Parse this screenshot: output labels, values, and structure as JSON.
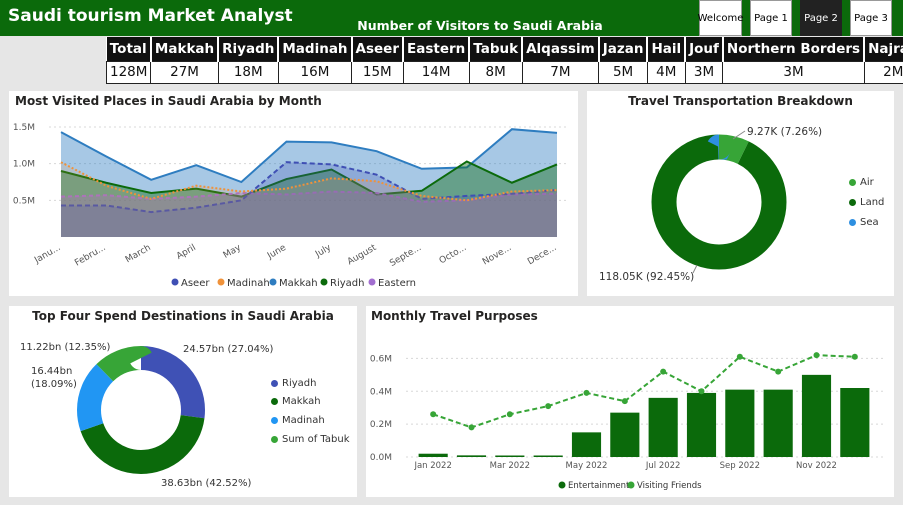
{
  "header": {
    "title": "Saudi tourism Market Analyst",
    "kpi_title": "Number of Visitors to Saudi Arabia",
    "pages": [
      {
        "label": "Welcome",
        "active": false
      },
      {
        "label": "Page 1",
        "active": false
      },
      {
        "label": "Page 2",
        "active": true
      },
      {
        "label": "Page 3",
        "active": false
      }
    ]
  },
  "kpi": {
    "headers": [
      "Total",
      "Makkah",
      "Riyadh",
      "Madinah",
      "Aseer",
      "Eastern",
      "Tabuk",
      "Alqassim",
      "Jazan",
      "Hail",
      "Jouf",
      "Northern Borders",
      "Najran"
    ],
    "values": [
      "128M",
      "27M",
      "18M",
      "16M",
      "15M",
      "14M",
      "8M",
      "7M",
      "5M",
      "4M",
      "3M",
      "3M",
      "2M"
    ]
  },
  "colors": {
    "header_green": "#0b6a0b",
    "aseer": "#3f4fb4",
    "madinah": "#f0923a",
    "makkah": "#2e7dc0",
    "riyadh": "#0b6a0b",
    "eastern": "#a26ed0",
    "air": "#37a537",
    "land": "#0b6a0b",
    "sea": "#2e8fe0",
    "riyadh_donut": "#3f51b5",
    "makkah_donut": "#0b6a0b",
    "madinah_donut": "#2196f3",
    "tabuk_donut": "#37a537",
    "entertainment": "#0b6a0b",
    "visiting_friends": "#37a537"
  },
  "chart_data": [
    {
      "id": "monthly_places",
      "type": "area",
      "title": "Most Visited Places in Saudi Arabia by Month",
      "categories": [
        "Janu...",
        "Febru...",
        "March",
        "April",
        "May",
        "June",
        "July",
        "August",
        "Septe...",
        "Octo...",
        "Nove...",
        "Dece..."
      ],
      "y_ticks": [
        "0.5M",
        "1.0M",
        "1.5M"
      ],
      "ylim": [
        0,
        1.5
      ],
      "series": [
        {
          "name": "Aseer",
          "values": [
            0.43,
            0.43,
            0.34,
            0.4,
            0.5,
            1.02,
            0.99,
            0.85,
            0.52,
            0.56,
            0.59,
            0.64
          ]
        },
        {
          "name": "Madinah",
          "values": [
            1.02,
            0.7,
            0.52,
            0.7,
            0.62,
            0.66,
            0.8,
            0.76,
            0.56,
            0.5,
            0.62,
            0.64
          ]
        },
        {
          "name": "Makkah",
          "values": [
            1.43,
            1.1,
            0.78,
            0.98,
            0.75,
            1.3,
            1.29,
            1.17,
            0.93,
            0.95,
            1.47,
            1.42
          ]
        },
        {
          "name": "Riyadh",
          "values": [
            0.9,
            0.74,
            0.6,
            0.66,
            0.55,
            0.79,
            0.92,
            0.58,
            0.63,
            1.03,
            0.74,
            0.99
          ]
        },
        {
          "name": "Eastern",
          "values": [
            0.55,
            0.57,
            0.52,
            0.55,
            0.6,
            0.58,
            0.62,
            0.6,
            0.48,
            0.5,
            0.58,
            0.59
          ]
        }
      ],
      "legend": [
        "Aseer",
        "Madinah",
        "Makkah",
        "Riyadh",
        "Eastern"
      ]
    },
    {
      "id": "transport",
      "type": "pie",
      "title": "Travel Transportation Breakdown",
      "slices": [
        {
          "name": "Air",
          "value": 9.27,
          "label": "9.27K (7.26%)"
        },
        {
          "name": "Land",
          "value": 118.05,
          "label": "118.05K (92.45%)"
        },
        {
          "name": "Sea",
          "value": 0.37,
          "label": ""
        }
      ],
      "legend": [
        "Air",
        "Land",
        "Sea"
      ]
    },
    {
      "id": "spend",
      "type": "pie",
      "title": "Top Four Spend Destinations in Saudi Arabia",
      "slices": [
        {
          "name": "Riyadh",
          "value": 24.57,
          "label": "24.57bn (27.04%)"
        },
        {
          "name": "Makkah",
          "value": 38.63,
          "label": "38.63bn (42.52%)"
        },
        {
          "name": "Madinah",
          "value": 16.44,
          "label_line1": "16.44bn",
          "label_line2": "(18.09%)"
        },
        {
          "name": "Sum of Tabuk",
          "value": 11.22,
          "label": "11.22bn (12.35%)"
        }
      ],
      "legend": [
        "Riyadh",
        "Makkah",
        "Madinah",
        "Sum of Tabuk"
      ]
    },
    {
      "id": "purposes",
      "type": "bar",
      "title": "Monthly Travel Purposes",
      "x_tick_labels": [
        "Jan 2022",
        "Mar 2022",
        "May 2022",
        "Jul 2022",
        "Sep 2022",
        "Nov 2022"
      ],
      "y_ticks": [
        "0.0M",
        "0.2M",
        "0.4M",
        "0.6M"
      ],
      "ylim": [
        0,
        0.7
      ],
      "series": [
        {
          "name": "Entertainment",
          "type": "bar",
          "values": [
            0.02,
            0.01,
            0.005,
            0.005,
            0.15,
            0.27,
            0.36,
            0.39,
            0.41,
            0.41,
            0.5,
            0.42
          ]
        },
        {
          "name": "Visiting Friends",
          "type": "line",
          "values": [
            0.26,
            0.18,
            0.26,
            0.31,
            0.39,
            0.34,
            0.52,
            0.4,
            0.61,
            0.52,
            0.62,
            0.61
          ]
        }
      ],
      "legend": [
        "Entertainment",
        "Visiting Friends"
      ]
    }
  ]
}
